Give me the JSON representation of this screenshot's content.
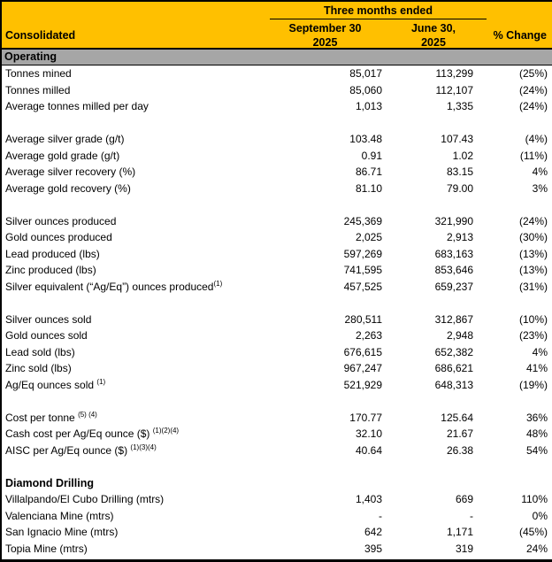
{
  "colors": {
    "header_bg": "#FFC000",
    "section_bg": "#A6A6A6",
    "border": "#000000"
  },
  "header": {
    "group_title": "Three months ended",
    "row_label": "Consolidated",
    "col1": {
      "line1": "September 30",
      "line2": "2025"
    },
    "col2": {
      "line1": "June 30,",
      "line2": "2025"
    },
    "col3": "% Change"
  },
  "section_bar": "Operating",
  "table": {
    "columns": [
      "Consolidated",
      "September 30 2025",
      "June 30, 2025",
      "% Change"
    ],
    "rows": [
      {
        "t": "data",
        "label": "Tonnes mined",
        "v1": "85,017",
        "v2": "113,299",
        "chg": "(25%)"
      },
      {
        "t": "data",
        "label": "Tonnes milled",
        "v1": "85,060",
        "v2": "112,107",
        "chg": "(24%)"
      },
      {
        "t": "data",
        "label": "Average tonnes milled per day",
        "v1": "1,013",
        "v2": "1,335",
        "chg": "(24%)"
      },
      {
        "t": "blank"
      },
      {
        "t": "data",
        "label": "Average silver grade (g/t)",
        "v1": "103.48",
        "v2": "107.43",
        "chg": "(4%)"
      },
      {
        "t": "data",
        "label": "Average gold grade (g/t)",
        "v1": "0.91",
        "v2": "1.02",
        "chg": "(11%)"
      },
      {
        "t": "data",
        "label": "Average silver recovery (%)",
        "v1": "86.71",
        "v2": "83.15",
        "chg": "4%"
      },
      {
        "t": "data",
        "label": "Average gold recovery (%)",
        "v1": "81.10",
        "v2": "79.00",
        "chg": "3%"
      },
      {
        "t": "blank"
      },
      {
        "t": "data",
        "label": "Silver ounces produced",
        "v1": "245,369",
        "v2": "321,990",
        "chg": "(24%)"
      },
      {
        "t": "data",
        "label": "Gold ounces produced",
        "v1": "2,025",
        "v2": "2,913",
        "chg": "(30%)"
      },
      {
        "t": "data",
        "label": "Lead produced (lbs)",
        "v1": "597,269",
        "v2": "683,163",
        "chg": "(13%)"
      },
      {
        "t": "data",
        "label": "Zinc produced (lbs)",
        "v1": "741,595",
        "v2": "853,646",
        "chg": "(13%)"
      },
      {
        "t": "data",
        "label": "Silver equivalent (“Ag/Eq”) ounces produced",
        "sup": "(1)",
        "v1": "457,525",
        "v2": "659,237",
        "chg": "(31%)"
      },
      {
        "t": "blank"
      },
      {
        "t": "data",
        "label": "Silver ounces sold",
        "v1": "280,511",
        "v2": "312,867",
        "chg": "(10%)"
      },
      {
        "t": "data",
        "label": "Gold ounces sold",
        "v1": "2,263",
        "v2": "2,948",
        "chg": "(23%)"
      },
      {
        "t": "data",
        "label": "Lead sold (lbs)",
        "v1": "676,615",
        "v2": "652,382",
        "chg": "4%"
      },
      {
        "t": "data",
        "label": "Zinc sold (lbs)",
        "v1": "967,247",
        "v2": "686,621",
        "chg": "41%"
      },
      {
        "t": "data",
        "label": "Ag/Eq ounces sold ",
        "sup": "(1)",
        "v1": "521,929",
        "v2": "648,313",
        "chg": "(19%)"
      },
      {
        "t": "blank"
      },
      {
        "t": "data",
        "label": "Cost per tonne ",
        "sup": "(5) (4)",
        "v1": "170.77",
        "v2": "125.64",
        "chg": "36%"
      },
      {
        "t": "data",
        "label": "Cash cost per Ag/Eq ounce ($) ",
        "sup": "(1)(2)(4)",
        "v1": "32.10",
        "v2": "21.67",
        "chg": "48%"
      },
      {
        "t": "data",
        "label": "AISC per Ag/Eq ounce ($) ",
        "sup": "(1)(3)(4)",
        "v1": "40.64",
        "v2": "26.38",
        "chg": "54%"
      },
      {
        "t": "blank"
      },
      {
        "t": "subheader",
        "label": "Diamond Drilling"
      },
      {
        "t": "data",
        "label": "Villalpando/El Cubo Drilling (mtrs)",
        "v1": "1,403",
        "v2": "669",
        "chg": "110%"
      },
      {
        "t": "data",
        "label": "Valenciana Mine (mtrs)",
        "v1": "-",
        "v2": "-",
        "chg": "0%"
      },
      {
        "t": "data",
        "label": "San Ignacio Mine (mtrs)",
        "v1": "642",
        "v2": "1,171",
        "chg": "(45%)"
      },
      {
        "t": "data",
        "label": "Topia Mine (mtrs)",
        "v1": "395",
        "v2": "319",
        "chg": "24%"
      }
    ]
  }
}
